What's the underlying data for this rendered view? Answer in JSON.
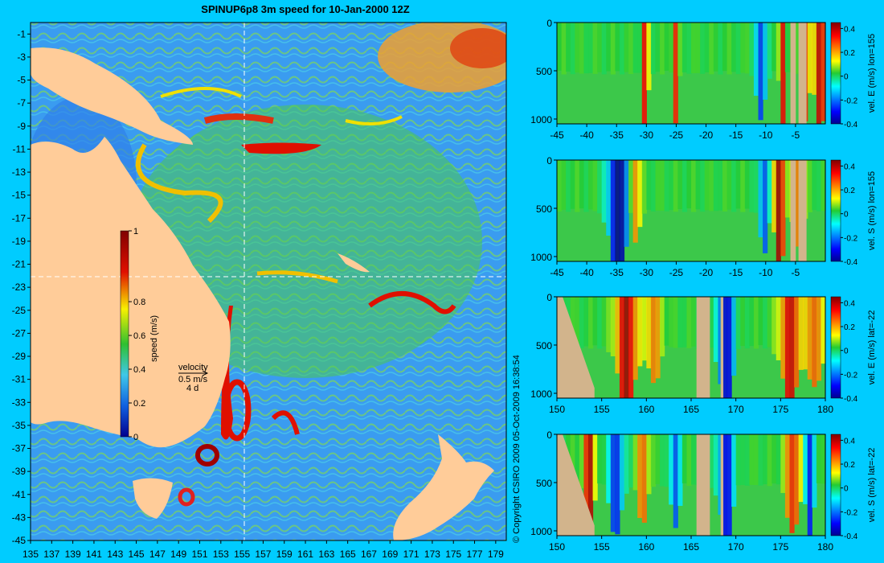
{
  "title": "SPINUP6p8 3m speed for 10-Jan-2000 12Z",
  "copyright": "© Copyright CSIRO 2009   05-Oct-2009 16:38:54",
  "colors": {
    "background": "#00ccff",
    "land": "#ffcc99",
    "section_land": "#d2b48c",
    "crosshair": "#ffffff"
  },
  "map": {
    "x_ticks": [
      "135",
      "137",
      "139",
      "141",
      "143",
      "145",
      "147",
      "149",
      "151",
      "153",
      "155",
      "157",
      "159",
      "161",
      "163",
      "165",
      "167",
      "169",
      "171",
      "173",
      "175",
      "177",
      "179"
    ],
    "y_ticks": [
      "-1",
      "-3",
      "-5",
      "-7",
      "-9",
      "-11",
      "-13",
      "-15",
      "-17",
      "-19",
      "-21",
      "-23",
      "-25",
      "-27",
      "-29",
      "-31",
      "-33",
      "-35",
      "-37",
      "-39",
      "-41",
      "-43",
      "-45"
    ],
    "lon_range": [
      135,
      180
    ],
    "lat_range": [
      -45,
      0
    ],
    "crosshair": {
      "lon": 155,
      "lat": -22
    },
    "colorbar": {
      "label": "speed (m/s)",
      "ticks": [
        "1",
        "0.8",
        "0.6",
        "0.4",
        "0.2",
        "0"
      ],
      "range": [
        0,
        1
      ]
    },
    "velocity_key": {
      "label": "velocity",
      "scale": "0.5 m/s",
      "time": "4 d"
    }
  },
  "chart_data": [
    {
      "type": "heatmap",
      "panel": "vel. E (m/s) lon=155",
      "x_ticks": [
        "-45",
        "-40",
        "-35",
        "-30",
        "-25",
        "-20",
        "-15",
        "-10",
        "-5"
      ],
      "xlim": [
        -45,
        0
      ],
      "y_ticks": [
        "0",
        "500",
        "1000"
      ],
      "ylim": [
        1050,
        0
      ],
      "colorbar_label": "vel. E (m/s) lon=155",
      "colorbar_ticks": [
        "0.4",
        "0.2",
        "0",
        "-0.2",
        "-0.4"
      ],
      "clim": [
        -0.4,
        0.45
      ]
    },
    {
      "type": "heatmap",
      "panel": "vel. S (m/s) lon=155",
      "x_ticks": [
        "-45",
        "-40",
        "-35",
        "-30",
        "-25",
        "-20",
        "-15",
        "-10",
        "-5"
      ],
      "xlim": [
        -45,
        0
      ],
      "y_ticks": [
        "0",
        "500",
        "1000"
      ],
      "ylim": [
        1050,
        0
      ],
      "colorbar_label": "vel. S (m/s) lon=155",
      "colorbar_ticks": [
        "0.4",
        "0.2",
        "0",
        "-0.2",
        "-0.4"
      ],
      "clim": [
        -0.4,
        0.45
      ]
    },
    {
      "type": "heatmap",
      "panel": "vel. E (m/s) lat=-22",
      "x_ticks": [
        "150",
        "155",
        "160",
        "165",
        "170",
        "175",
        "180"
      ],
      "xlim": [
        150,
        180
      ],
      "y_ticks": [
        "0",
        "500",
        "1000"
      ],
      "ylim": [
        1050,
        0
      ],
      "colorbar_label": "vel. E (m/s) lat=-22",
      "colorbar_ticks": [
        "0.4",
        "0.2",
        "0",
        "-0.2",
        "-0.4"
      ],
      "clim": [
        -0.4,
        0.45
      ]
    },
    {
      "type": "heatmap",
      "panel": "vel. S (m/s) lat=-22",
      "x_ticks": [
        "150",
        "155",
        "160",
        "165",
        "170",
        "175",
        "180"
      ],
      "xlim": [
        150,
        180
      ],
      "y_ticks": [
        "0",
        "500",
        "1000"
      ],
      "ylim": [
        1050,
        0
      ],
      "colorbar_label": "vel. S (m/s) lat=-22",
      "colorbar_ticks": [
        "0.4",
        "0.2",
        "0",
        "-0.2",
        "-0.4"
      ],
      "clim": [
        -0.4,
        0.45
      ]
    }
  ]
}
